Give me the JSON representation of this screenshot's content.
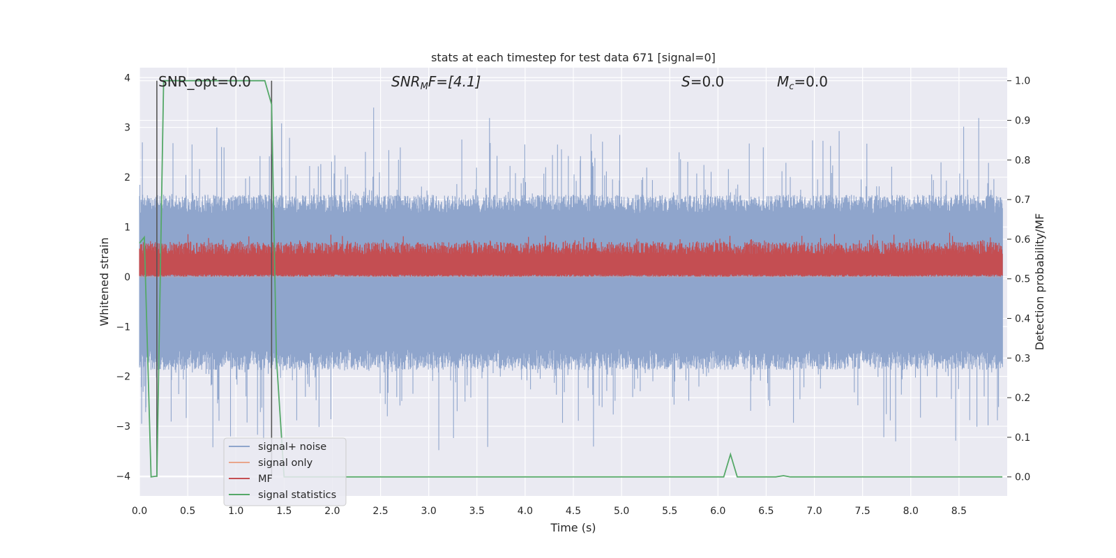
{
  "chart_data": {
    "type": "line",
    "title": "stats at each timestep for test data 671 [signal=0]",
    "xlabel": "Time (s)",
    "ylabel": "Whitened strain",
    "y2label": "Detection probability/MF",
    "xlim": [
      0.0,
      9.0
    ],
    "ylim": [
      -4.4,
      4.2
    ],
    "y2lim": [
      -0.048,
      1.033
    ],
    "xticks": [
      "0.0",
      "0.5",
      "1.0",
      "1.5",
      "2.0",
      "2.5",
      "3.0",
      "3.5",
      "4.0",
      "4.5",
      "5.0",
      "5.5",
      "6.0",
      "6.5",
      "7.0",
      "7.5",
      "8.0",
      "8.5"
    ],
    "yticks": [
      "4",
      "3",
      "2",
      "1",
      "0",
      "−1",
      "−2",
      "−3",
      "−4"
    ],
    "y2ticks": [
      "1.0",
      "0.9",
      "0.8",
      "0.7",
      "0.6",
      "0.5",
      "0.4",
      "0.3",
      "0.2",
      "0.1",
      "0.0"
    ],
    "grid": true,
    "legend_position": "lower-left",
    "annotations": {
      "snr_opt": "SNR_opt=0.0",
      "snr_mf_main": "SNR",
      "snr_mf_sub": "M",
      "snr_mf_rest": "F=[4.1]",
      "s_main": "S",
      "s_rest": "=0.0",
      "mc_main": "M",
      "mc_sub": "c",
      "mc_rest": "=0.0"
    },
    "vertical_markers_x": [
      0.18,
      1.37
    ],
    "series": [
      {
        "name": "signal+ noise",
        "color": "#8fa5cc",
        "axis": "left",
        "description": "whitened noise strain, roughly gaussian with sigma ~1, range about -3.7 to 3.8",
        "envelope": {
          "typical_min": -1.7,
          "typical_max": 1.5,
          "peak_min": -3.7,
          "peak_max": 3.8
        }
      },
      {
        "name": "signal only",
        "color": "#e9a58b",
        "axis": "left",
        "values_constant": 0.0
      },
      {
        "name": "MF",
        "color": "#c44e52",
        "axis": "left",
        "description": "matched filter output, approx 0.0 to 0.9",
        "envelope": {
          "min": 0.0,
          "max": 0.9
        }
      },
      {
        "name": "signal statistics",
        "color": "#55a868",
        "axis": "right",
        "x": [
          0.0,
          0.05,
          0.12,
          0.18,
          0.25,
          0.3,
          1.0,
          1.3,
          1.37,
          1.42,
          1.5,
          2.0,
          3.0,
          4.0,
          5.0,
          6.0,
          6.06,
          6.13,
          6.2,
          6.5,
          6.6,
          6.68,
          6.75,
          7.0,
          8.0,
          8.95
        ],
        "values": [
          0.59,
          0.605,
          0.0,
          0.002,
          1.0,
          1.0,
          1.0,
          1.0,
          0.94,
          0.3,
          0.0,
          0.0,
          0.0,
          0.0,
          0.0,
          0.0,
          0.0,
          0.057,
          0.0,
          0.0,
          0.0,
          0.003,
          0.0,
          0.0,
          0.0,
          0.0
        ]
      }
    ]
  },
  "colors": {
    "plot_background": "#eaeaf2",
    "grid": "#ffffff",
    "marker_line": "#555555"
  }
}
